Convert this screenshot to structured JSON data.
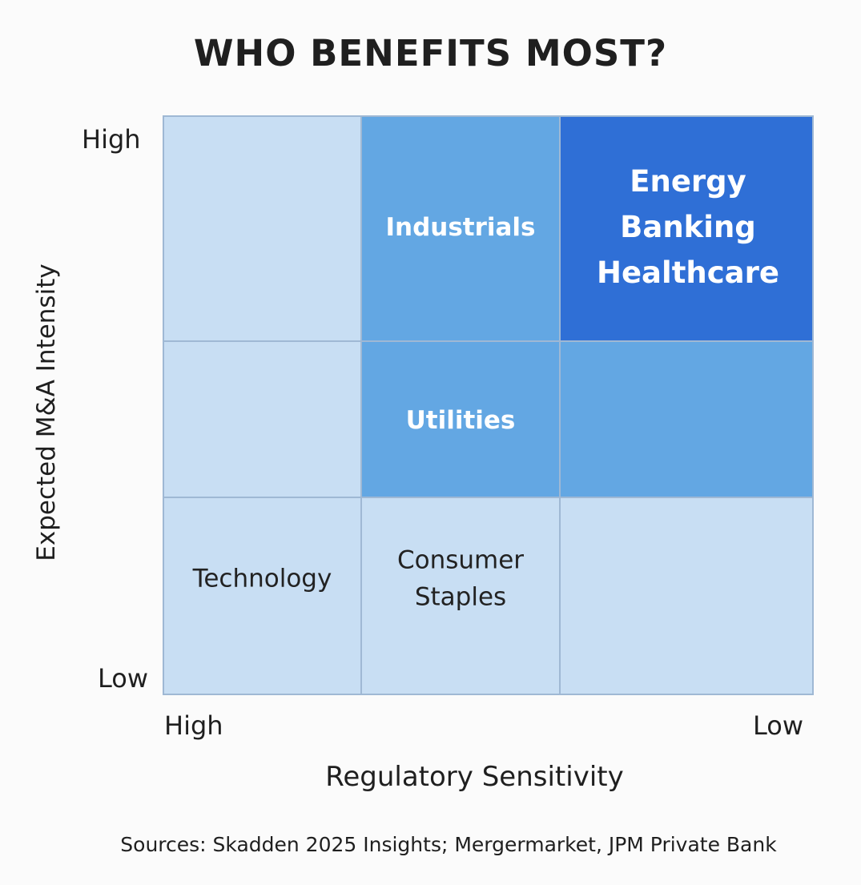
{
  "title": "WHO BENEFITS MOST?",
  "source": "Sources: Skadden 2025 Insights; Mergermarket, JPM Private Bank",
  "colors": {
    "low": "#c8def3",
    "medium": "#63a7e3",
    "high": "#2f6fd6",
    "grid": "#9fb8d4",
    "dark_text": "#222222",
    "light_text": "#ffffff"
  },
  "chart_data": {
    "type": "heatmap",
    "title": "WHO BENEFITS MOST?",
    "xlabel": "Regulatory Sensitivity",
    "ylabel": "Expected M&A Intensity",
    "x_ticks": [
      "High",
      "Low"
    ],
    "y_ticks": [
      "High",
      "Low"
    ],
    "grid": true,
    "cells": [
      {
        "row": 0,
        "col": 0,
        "level": "low",
        "labels": []
      },
      {
        "row": 0,
        "col": 1,
        "level": "medium",
        "labels": [
          "Industrials"
        ]
      },
      {
        "row": 0,
        "col": 2,
        "level": "high",
        "labels": [
          "Energy",
          "Banking",
          "Healthcare"
        ]
      },
      {
        "row": 1,
        "col": 0,
        "level": "low",
        "labels": []
      },
      {
        "row": 1,
        "col": 1,
        "level": "medium",
        "labels": [
          "Utilities"
        ]
      },
      {
        "row": 1,
        "col": 2,
        "level": "medium",
        "labels": []
      },
      {
        "row": 2,
        "col": 0,
        "level": "low",
        "labels": [
          "Technology"
        ]
      },
      {
        "row": 2,
        "col": 1,
        "level": "low",
        "labels": [
          "Consumer",
          "Staples"
        ]
      },
      {
        "row": 2,
        "col": 2,
        "level": "low",
        "labels": []
      }
    ]
  }
}
